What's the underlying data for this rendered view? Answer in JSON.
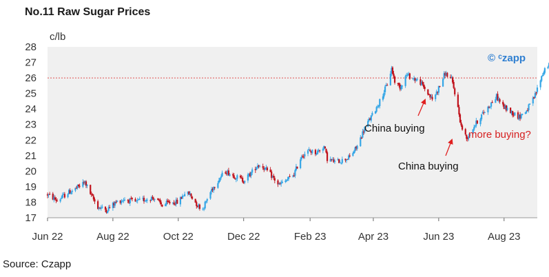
{
  "title": "No.11 Raw Sugar Prices",
  "source": "Source: Czapp",
  "watermark": "© ᶜzapp",
  "colors": {
    "up": "#35a6e6",
    "down": "#c0121c",
    "reference": "#e05050",
    "watermark": "#2f7fd1",
    "annotation_dark": "#111111",
    "annotation_red": "#d62020",
    "plot_bg": "#f0f0f0"
  },
  "chart_data": {
    "type": "candlestick",
    "title": "No.11 Raw Sugar Prices",
    "ylabel": "c/lb",
    "ylim": [
      17,
      28
    ],
    "yticks": [
      17,
      18,
      19,
      20,
      21,
      22,
      23,
      24,
      25,
      26,
      27,
      28
    ],
    "xlim": [
      "2022-06-01",
      "2023-09-01"
    ],
    "xticks": [
      {
        "label": "Jun 22",
        "date": "2022-06-01"
      },
      {
        "label": "Aug 22",
        "date": "2022-08-01"
      },
      {
        "label": "Oct 22",
        "date": "2022-10-01"
      },
      {
        "label": "Dec 22",
        "date": "2022-12-01"
      },
      {
        "label": "Feb 23",
        "date": "2023-02-01"
      },
      {
        "label": "Apr 23",
        "date": "2023-04-01"
      },
      {
        "label": "Jun 23",
        "date": "2023-06-01"
      },
      {
        "label": "Aug 23",
        "date": "2023-08-01"
      }
    ],
    "reference_line": {
      "y": 26,
      "style": "dotted"
    },
    "grid": false,
    "price_path": [
      [
        "2022-06-01",
        18.5
      ],
      [
        "2022-06-10",
        18.1
      ],
      [
        "2022-06-20",
        18.6
      ],
      [
        "2022-06-28",
        18.9
      ],
      [
        "2022-07-06",
        19.3
      ],
      [
        "2022-07-12",
        18.4
      ],
      [
        "2022-07-18",
        17.7
      ],
      [
        "2022-07-26",
        17.5
      ],
      [
        "2022-08-04",
        18.0
      ],
      [
        "2022-08-12",
        18.2
      ],
      [
        "2022-08-22",
        18.0
      ],
      [
        "2022-09-01",
        18.2
      ],
      [
        "2022-09-08",
        18.3
      ],
      [
        "2022-09-16",
        17.8
      ],
      [
        "2022-09-24",
        18.0
      ],
      [
        "2022-10-01",
        18.0
      ],
      [
        "2022-10-07",
        18.6
      ],
      [
        "2022-10-12",
        18.5
      ],
      [
        "2022-10-19",
        17.8
      ],
      [
        "2022-10-24",
        17.6
      ],
      [
        "2022-11-01",
        18.8
      ],
      [
        "2022-11-08",
        19.5
      ],
      [
        "2022-11-14",
        20.0
      ],
      [
        "2022-11-22",
        19.7
      ],
      [
        "2022-12-01",
        19.4
      ],
      [
        "2022-12-07",
        19.8
      ],
      [
        "2022-12-14",
        20.4
      ],
      [
        "2022-12-19",
        20.3
      ],
      [
        "2022-12-27",
        19.7
      ],
      [
        "2023-01-03",
        19.1
      ],
      [
        "2023-01-10",
        19.4
      ],
      [
        "2023-01-17",
        19.8
      ],
      [
        "2023-01-24",
        21.0
      ],
      [
        "2023-01-31",
        21.3
      ],
      [
        "2023-02-07",
        21.2
      ],
      [
        "2023-02-14",
        21.6
      ],
      [
        "2023-02-17",
        20.8
      ],
      [
        "2023-02-24",
        20.6
      ],
      [
        "2023-03-03",
        20.7
      ],
      [
        "2023-03-10",
        20.9
      ],
      [
        "2023-03-17",
        21.6
      ],
      [
        "2023-03-24",
        22.8
      ],
      [
        "2023-03-31",
        23.6
      ],
      [
        "2023-04-07",
        24.5
      ],
      [
        "2023-04-14",
        25.6
      ],
      [
        "2023-04-18",
        26.6
      ],
      [
        "2023-04-21",
        25.8
      ],
      [
        "2023-04-26",
        25.4
      ],
      [
        "2023-05-02",
        26.2
      ],
      [
        "2023-05-08",
        26.0
      ],
      [
        "2023-05-15",
        25.7
      ],
      [
        "2023-05-22",
        25.0
      ],
      [
        "2023-05-26",
        24.6
      ],
      [
        "2023-05-31",
        25.2
      ],
      [
        "2023-06-07",
        26.3
      ],
      [
        "2023-06-13",
        25.9
      ],
      [
        "2023-06-17",
        24.8
      ],
      [
        "2023-06-22",
        22.9
      ],
      [
        "2023-06-27",
        22.1
      ],
      [
        "2023-07-04",
        22.9
      ],
      [
        "2023-07-11",
        23.6
      ],
      [
        "2023-07-18",
        24.2
      ],
      [
        "2023-07-25",
        24.8
      ],
      [
        "2023-08-01",
        24.1
      ],
      [
        "2023-08-08",
        23.8
      ],
      [
        "2023-08-15",
        23.5
      ],
      [
        "2023-08-22",
        23.9
      ],
      [
        "2023-08-29",
        24.7
      ],
      [
        "2023-09-05",
        26.1
      ],
      [
        "2023-09-10",
        26.9
      ],
      [
        "2023-09-16",
        26.6
      ]
    ],
    "annotations": [
      {
        "text": "China buying",
        "date": "2023-05-26",
        "value": 24.6,
        "color": "dark"
      },
      {
        "text": "China buying",
        "date": "2023-06-27",
        "value": 22.1,
        "color": "dark"
      },
      {
        "text": "more buying?",
        "date": "2023-08-25",
        "value": 22.4,
        "color": "red"
      }
    ]
  }
}
